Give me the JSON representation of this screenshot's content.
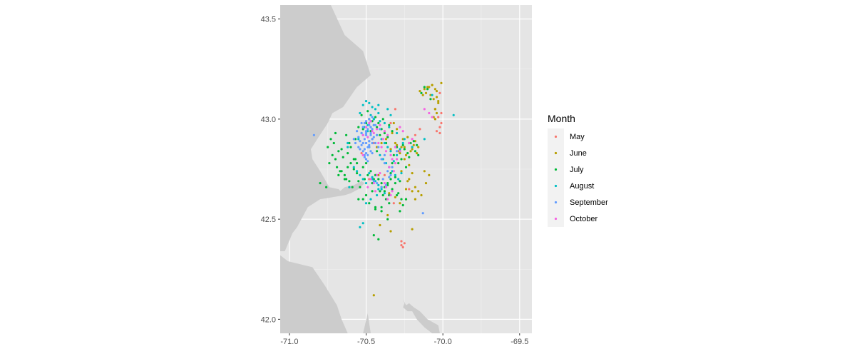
{
  "chart_data": {
    "type": "scatter",
    "title": "",
    "xlabel": "",
    "ylabel": "",
    "xlim": [
      -71.06,
      -69.42
    ],
    "ylim": [
      41.93,
      43.57
    ],
    "x_ticks": [
      -71.0,
      -70.5,
      -70.0,
      -69.5
    ],
    "x_tick_labels": [
      "-71.0",
      "-70.5",
      "-70.0",
      "-69.5"
    ],
    "y_ticks": [
      42.0,
      42.5,
      43.0,
      43.5
    ],
    "y_tick_labels": [
      "42.0",
      "42.5",
      "43.0",
      "43.5"
    ],
    "grid": true,
    "background": "#e5e5e5",
    "land_color": "#cccccc",
    "legend": {
      "title": "Month",
      "placement": "right",
      "entries": [
        {
          "name": "May",
          "color": "#F8766D"
        },
        {
          "name": "June",
          "color": "#B79F00"
        },
        {
          "name": "July",
          "color": "#00BA38"
        },
        {
          "name": "August",
          "color": "#00BFC4"
        },
        {
          "name": "September",
          "color": "#619CFF"
        },
        {
          "name": "October",
          "color": "#F564E3"
        }
      ]
    },
    "land_polygons": [
      [
        [
          -71.06,
          43.57
        ],
        [
          -70.73,
          43.57
        ],
        [
          -70.64,
          43.42
        ],
        [
          -70.52,
          43.34
        ],
        [
          -70.47,
          43.22
        ],
        [
          -70.56,
          43.16
        ],
        [
          -70.65,
          43.06
        ],
        [
          -70.72,
          43.03
        ],
        [
          -70.75,
          42.98
        ],
        [
          -70.81,
          42.91
        ],
        [
          -70.86,
          42.85
        ],
        [
          -70.85,
          42.8
        ],
        [
          -70.8,
          42.74
        ],
        [
          -70.74,
          42.66
        ],
        [
          -70.68,
          42.65
        ],
        [
          -70.64,
          42.62
        ],
        [
          -70.8,
          42.6
        ],
        [
          -70.88,
          42.56
        ],
        [
          -70.95,
          42.46
        ],
        [
          -70.98,
          42.43
        ],
        [
          -71.03,
          42.34
        ],
        [
          -71.06,
          42.34
        ]
      ],
      [
        [
          -71.06,
          42.32
        ],
        [
          -71.01,
          42.29
        ],
        [
          -70.85,
          42.26
        ],
        [
          -70.77,
          42.17
        ],
        [
          -70.69,
          42.07
        ],
        [
          -70.66,
          42.0
        ],
        [
          -70.62,
          41.93
        ],
        [
          -71.06,
          41.93
        ]
      ],
      [
        [
          -70.52,
          41.93
        ],
        [
          -70.49,
          42.03
        ],
        [
          -70.47,
          41.93
        ]
      ],
      [
        [
          -70.51,
          42.68
        ],
        [
          -70.55,
          42.65
        ],
        [
          -70.6,
          42.63
        ],
        [
          -70.64,
          42.62
        ],
        [
          -70.67,
          42.64
        ],
        [
          -70.64,
          42.66
        ],
        [
          -70.58,
          42.67
        ],
        [
          -70.53,
          42.69
        ]
      ],
      [
        [
          -70.26,
          42.1
        ],
        [
          -70.24,
          42.07
        ],
        [
          -70.22,
          42.08
        ],
        [
          -70.19,
          42.06
        ],
        [
          -70.15,
          42.04
        ],
        [
          -70.1,
          42.0
        ],
        [
          -70.03,
          41.97
        ],
        [
          -70.02,
          41.93
        ],
        [
          -70.07,
          41.93
        ],
        [
          -70.12,
          41.96
        ],
        [
          -70.17,
          42.0
        ],
        [
          -70.2,
          42.04
        ],
        [
          -70.23,
          42.04
        ],
        [
          -70.26,
          42.06
        ],
        [
          -70.25,
          42.08
        ]
      ]
    ],
    "series": [
      {
        "name": "May",
        "x": [
          -70.02,
          -70.01,
          -70.03,
          -70.01,
          -70.02,
          -70.04,
          -70.05,
          -70.02,
          -70.27,
          -70.25,
          -70.26,
          -70.27,
          -70.34,
          -70.2,
          -70.18,
          -70.31,
          -70.45,
          -70.22,
          -70.48,
          -70.38,
          -70.35,
          -70.53,
          -70.05,
          -70.15,
          -70.32
        ],
        "y": [
          42.96,
          42.98,
          43.01,
          43.03,
          42.93,
          42.94,
          43.05,
          43.13,
          42.37,
          42.38,
          42.36,
          42.39,
          42.98,
          42.9,
          42.92,
          43.05,
          42.88,
          42.65,
          42.7,
          42.72,
          42.62,
          42.83,
          43.0,
          42.95,
          42.58
        ]
      },
      {
        "name": "June",
        "x": [
          -70.1,
          -70.07,
          -70.05,
          -70.04,
          -70.08,
          -70.11,
          -70.06,
          -70.03,
          -70.09,
          -70.12,
          -70.15,
          -70.13,
          -70.05,
          -70.04,
          -70.06,
          -70.01,
          -70.05,
          -70.07,
          -70.04,
          -70.03,
          -70.25,
          -70.22,
          -70.2,
          -70.28,
          -70.3,
          -70.18,
          -70.24,
          -70.26,
          -70.21,
          -70.27,
          -70.23,
          -70.19,
          -70.29,
          -70.17,
          -70.25,
          -70.31,
          -70.22,
          -70.34,
          -70.16,
          -70.2,
          -70.22,
          -70.18,
          -70.14,
          -70.11,
          -70.09,
          -70.12,
          -70.16,
          -70.24,
          -70.28,
          -70.31,
          -70.35,
          -70.37,
          -70.33,
          -70.3,
          -70.32,
          -70.4,
          -70.43,
          -70.46,
          -70.2,
          -70.18,
          -70.24,
          -70.41,
          -70.34,
          -70.2,
          -70.36,
          -70.42,
          -70.27,
          -70.23,
          -70.45,
          -70.05
        ],
        "y": [
          43.16,
          43.17,
          43.15,
          43.14,
          43.12,
          43.13,
          43.1,
          43.08,
          43.16,
          43.15,
          43.14,
          43.12,
          43.05,
          43.03,
          43.01,
          43.18,
          43.0,
          43.17,
          43.11,
          43.09,
          42.86,
          42.88,
          42.85,
          42.83,
          42.87,
          42.89,
          42.82,
          42.9,
          42.84,
          42.86,
          42.91,
          42.87,
          42.84,
          42.83,
          42.8,
          42.88,
          42.77,
          42.85,
          42.86,
          42.73,
          42.7,
          42.66,
          42.62,
          42.68,
          42.72,
          42.74,
          42.64,
          42.6,
          42.58,
          42.61,
          42.63,
          42.9,
          42.93,
          42.95,
          42.98,
          42.88,
          42.86,
          42.9,
          42.64,
          42.6,
          42.65,
          42.47,
          42.44,
          42.45,
          42.52,
          42.72,
          42.74,
          42.69,
          42.12,
          43.05
        ]
      },
      {
        "name": "July",
        "x": [
          -70.75,
          -70.72,
          -70.7,
          -70.68,
          -70.74,
          -70.71,
          -70.66,
          -70.69,
          -70.73,
          -70.65,
          -70.67,
          -70.62,
          -70.6,
          -70.64,
          -70.58,
          -70.56,
          -70.61,
          -70.57,
          -70.63,
          -70.7,
          -70.55,
          -70.52,
          -70.5,
          -70.48,
          -70.45,
          -70.53,
          -70.47,
          -70.43,
          -70.41,
          -70.46,
          -70.49,
          -70.44,
          -70.42,
          -70.4,
          -70.38,
          -70.36,
          -70.39,
          -70.35,
          -70.33,
          -70.37,
          -70.3,
          -70.28,
          -70.32,
          -70.26,
          -70.25,
          -70.23,
          -70.21,
          -70.27,
          -70.29,
          -70.24,
          -70.22,
          -70.2,
          -70.18,
          -70.16,
          -70.19,
          -70.17,
          -70.34,
          -70.31,
          -70.28,
          -70.43,
          -70.45,
          -70.4,
          -70.38,
          -70.41,
          -70.36,
          -70.34,
          -70.39,
          -70.31,
          -70.33,
          -70.29,
          -70.27,
          -70.51,
          -70.49,
          -70.55,
          -70.54,
          -70.56,
          -70.52,
          -70.58,
          -70.5,
          -70.47,
          -70.44,
          -70.46,
          -70.42,
          -70.4,
          -70.38,
          -70.36,
          -70.35,
          -70.37,
          -70.66,
          -70.64,
          -70.61,
          -70.59,
          -70.68,
          -70.6,
          -70.57,
          -70.62,
          -70.44,
          -70.4,
          -70.5,
          -70.48,
          -70.52,
          -70.46,
          -70.4,
          -70.35,
          -70.3,
          -70.26,
          -70.24,
          -70.42,
          -70.45,
          -70.8,
          -70.76,
          -70.63,
          -70.55,
          -70.44,
          -70.36,
          -70.28,
          -70.12,
          -70.1,
          -70.14,
          -70.08,
          -70.48,
          -70.43,
          -70.33
        ],
        "y": [
          42.86,
          42.82,
          42.8,
          42.84,
          42.78,
          42.88,
          42.85,
          42.76,
          42.9,
          42.81,
          42.74,
          42.83,
          42.86,
          42.72,
          42.8,
          42.78,
          42.88,
          42.9,
          42.92,
          42.93,
          42.96,
          42.95,
          42.98,
          43.0,
          42.97,
          43.02,
          42.94,
          42.96,
          42.92,
          42.99,
          43.04,
          43.01,
          42.98,
          42.95,
          42.93,
          42.91,
          43.0,
          42.97,
          42.94,
          42.88,
          42.86,
          42.84,
          42.82,
          42.87,
          42.85,
          42.83,
          42.88,
          42.8,
          42.78,
          42.76,
          42.81,
          42.86,
          42.84,
          42.82,
          42.89,
          42.87,
          42.73,
          42.71,
          42.69,
          42.72,
          42.7,
          42.68,
          42.66,
          42.64,
          42.67,
          42.7,
          42.62,
          42.68,
          42.65,
          42.63,
          42.6,
          42.7,
          42.72,
          42.69,
          42.66,
          42.73,
          42.76,
          42.75,
          42.78,
          42.74,
          42.72,
          42.68,
          42.7,
          42.66,
          42.64,
          42.68,
          42.62,
          42.6,
          42.74,
          42.7,
          42.69,
          42.66,
          42.72,
          42.78,
          42.8,
          42.76,
          42.55,
          42.54,
          42.62,
          42.58,
          42.6,
          42.64,
          42.56,
          42.58,
          42.62,
          42.57,
          42.6,
          42.4,
          42.42,
          42.68,
          42.66,
          42.7,
          42.6,
          42.56,
          42.5,
          42.54,
          43.16,
          43.15,
          43.13,
          43.1,
          42.86,
          42.84,
          42.78
        ]
      },
      {
        "name": "August",
        "x": [
          -70.52,
          -70.5,
          -70.48,
          -70.46,
          -70.44,
          -70.54,
          -70.42,
          -70.47,
          -70.45,
          -70.51,
          -70.49,
          -70.43,
          -70.4,
          -70.38,
          -70.36,
          -70.34,
          -70.41,
          -70.39,
          -70.37,
          -70.35,
          -70.33,
          -70.31,
          -70.29,
          -70.27,
          -70.3,
          -70.32,
          -70.28,
          -70.26,
          -70.25,
          -70.48,
          -70.46,
          -70.44,
          -70.42,
          -70.4,
          -70.38,
          -70.47,
          -70.43,
          -70.52,
          -70.54,
          -70.5,
          -70.56,
          -70.58,
          -70.61,
          -70.62,
          -70.55,
          -70.53,
          -70.49,
          -70.45,
          -70.41,
          -70.36,
          -70.34,
          -70.3,
          -70.35,
          -70.38,
          -70.42,
          -70.2,
          -70.12,
          -70.07,
          -69.93,
          -70.54,
          -70.52,
          -70.46,
          -70.42,
          -70.5,
          -70.62
        ],
        "y": [
          43.07,
          43.09,
          43.08,
          43.06,
          43.05,
          43.03,
          43.07,
          43.02,
          43.0,
          42.96,
          42.94,
          42.92,
          42.9,
          42.88,
          42.86,
          42.84,
          42.82,
          42.8,
          42.78,
          42.76,
          42.74,
          42.72,
          42.7,
          42.73,
          42.82,
          42.79,
          42.85,
          42.88,
          42.9,
          42.73,
          42.71,
          42.69,
          42.67,
          42.65,
          42.63,
          42.6,
          42.62,
          42.7,
          42.72,
          42.68,
          42.74,
          42.76,
          42.66,
          42.86,
          42.9,
          42.93,
          42.97,
          43.0,
          42.99,
          43.05,
          43.02,
          42.93,
          42.96,
          42.98,
          43.03,
          42.86,
          42.9,
          43.12,
          43.02,
          42.46,
          42.48,
          42.7,
          42.65,
          42.58,
          42.88
        ]
      },
      {
        "name": "September",
        "x": [
          -70.51,
          -70.49,
          -70.5,
          -70.48,
          -70.52,
          -70.47,
          -70.53,
          -70.46,
          -70.5,
          -70.48,
          -70.51,
          -70.49,
          -70.47,
          -70.52,
          -70.5,
          -70.45,
          -70.54,
          -70.48,
          -70.46,
          -70.51,
          -70.53,
          -70.49,
          -70.47,
          -70.5,
          -70.52,
          -70.44,
          -70.48,
          -70.55,
          -70.5,
          -70.46,
          -70.49,
          -70.51,
          -70.47,
          -70.53,
          -70.45,
          -70.48,
          -70.5,
          -70.52,
          -70.54,
          -70.46,
          -70.43,
          -70.56,
          -70.42,
          -70.57,
          -70.41,
          -70.58,
          -70.49,
          -70.51,
          -70.47,
          -70.5,
          -70.48,
          -70.52,
          -70.44,
          -70.46,
          -70.55,
          -70.4,
          -70.38,
          -70.36,
          -70.34,
          -70.39,
          -70.37,
          -70.35,
          -70.33,
          -70.45,
          -70.43,
          -70.4,
          -70.84,
          -70.13,
          -70.3,
          -70.38
        ],
        "y": [
          42.9,
          42.91,
          42.88,
          42.89,
          42.92,
          42.93,
          42.87,
          42.9,
          42.94,
          42.86,
          42.85,
          42.95,
          42.84,
          42.96,
          42.83,
          42.91,
          42.89,
          42.97,
          42.88,
          42.98,
          42.93,
          42.82,
          42.92,
          42.99,
          42.84,
          42.88,
          43.0,
          42.91,
          42.8,
          42.95,
          42.86,
          42.82,
          42.96,
          42.98,
          42.97,
          42.87,
          42.92,
          42.88,
          42.85,
          42.83,
          42.92,
          42.94,
          42.86,
          42.88,
          42.95,
          42.9,
          42.79,
          42.81,
          42.99,
          42.93,
          42.89,
          42.96,
          42.97,
          43.01,
          42.86,
          42.8,
          42.78,
          42.74,
          42.72,
          42.7,
          42.67,
          42.71,
          42.76,
          42.69,
          42.68,
          42.66,
          42.92,
          42.53,
          42.84,
          42.82
        ]
      },
      {
        "name": "October",
        "x": [
          -70.5,
          -70.48,
          -70.46,
          -70.52,
          -70.47,
          -70.45,
          -70.49,
          -70.43,
          -70.41,
          -70.39,
          -70.42,
          -70.38,
          -70.36,
          -70.4,
          -70.37,
          -70.34,
          -70.33,
          -70.31,
          -70.35,
          -70.32,
          -70.28,
          -70.26,
          -70.47,
          -70.45,
          -70.43,
          -70.49,
          -70.44,
          -70.37,
          -70.36,
          -70.34,
          -70.38,
          -70.33,
          -70.12,
          -70.09,
          -70.07,
          -70.28,
          -70.3,
          -70.31,
          -70.22,
          -70.2,
          -70.52,
          -70.41
        ],
        "y": [
          42.96,
          42.98,
          42.94,
          42.92,
          42.99,
          42.93,
          42.91,
          42.95,
          42.97,
          42.9,
          42.88,
          42.94,
          42.92,
          42.86,
          42.84,
          42.82,
          42.8,
          42.78,
          42.76,
          42.74,
          42.96,
          42.94,
          42.7,
          42.68,
          42.72,
          42.66,
          42.64,
          42.66,
          42.6,
          42.62,
          42.68,
          42.64,
          43.05,
          43.03,
          43.01,
          42.84,
          42.8,
          42.86,
          42.88,
          42.9,
          42.82,
          42.73
        ]
      }
    ]
  }
}
